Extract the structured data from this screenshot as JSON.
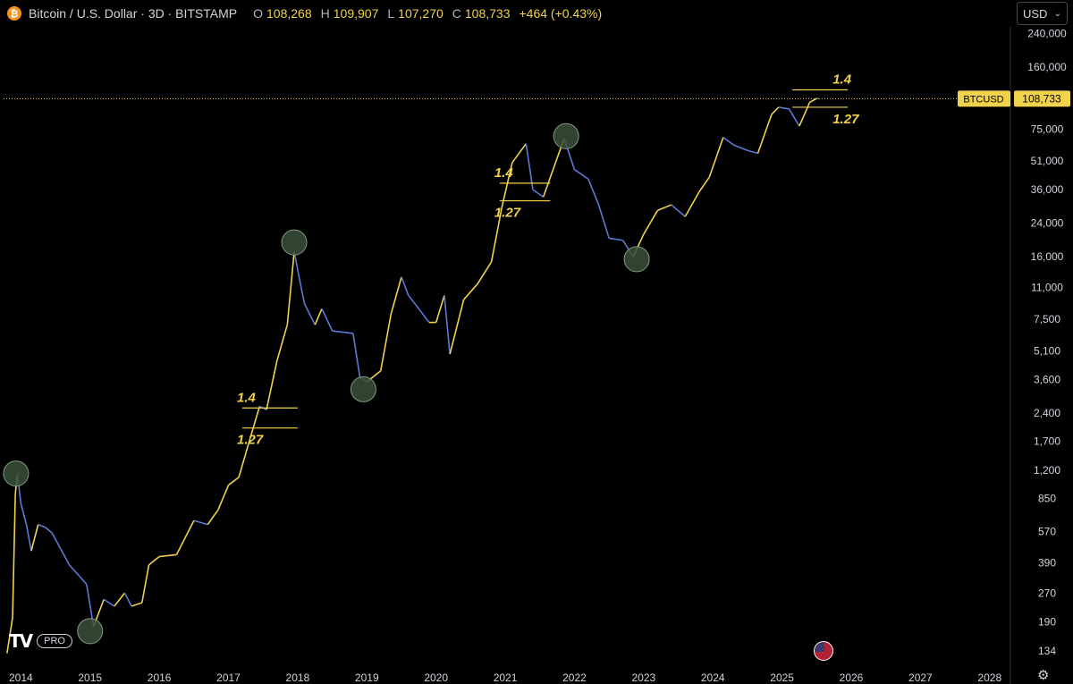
{
  "header": {
    "title": "Bitcoin / U.S. Dollar · 3D · BITSTAMP",
    "open_key": "O",
    "open": "108,268",
    "high_key": "H",
    "high": "109,907",
    "low_key": "L",
    "low": "107,270",
    "close_key": "C",
    "close": "108,733",
    "change": "+464 (+0.43%)"
  },
  "currency": {
    "value": "USD",
    "icon": "chevron-down-icon"
  },
  "branding": {
    "mark": "TV",
    "badge": "PRO"
  },
  "price_tag": {
    "symbol": "BTCUSD",
    "price": "108,733",
    "color": "#f0d24c"
  },
  "colors": {
    "background": "#000000",
    "up": "#f0d24c",
    "down": "#5b7bd6",
    "circle": "#39503a",
    "annotation": "#f0d24c",
    "axis_text": "#d1d4dc"
  },
  "chart_data": {
    "type": "line",
    "scale": "log",
    "y_axis_ticks": [
      "240,000",
      "160,000",
      "108,733",
      "75,000",
      "51,000",
      "36,000",
      "24,000",
      "16,000",
      "11,000",
      "7,500",
      "5,100",
      "3,600",
      "2,400",
      "1,700",
      "1,200",
      "850",
      "570",
      "390",
      "270",
      "190",
      "134"
    ],
    "x_axis_ticks": [
      "2014",
      "2015",
      "2016",
      "2017",
      "2018",
      "2019",
      "2020",
      "2021",
      "2022",
      "2023",
      "2024",
      "2025",
      "2026",
      "2027",
      "2028"
    ],
    "ylim": [
      120,
      260000
    ],
    "xlim": [
      2013.75,
      2028.3
    ],
    "series": [
      {
        "values": [
          [
            2013.8,
            130
          ],
          [
            2013.88,
            200
          ],
          [
            2013.92,
            900
          ],
          [
            2013.95,
            1150
          ],
          [
            2014.0,
            800
          ],
          [
            2014.08,
            620
          ],
          [
            2014.15,
            450
          ],
          [
            2014.25,
            620
          ],
          [
            2014.35,
            600
          ],
          [
            2014.45,
            560
          ],
          [
            2014.55,
            480
          ],
          [
            2014.7,
            380
          ],
          [
            2014.85,
            330
          ],
          [
            2014.95,
            300
          ],
          [
            2015.05,
            180
          ],
          [
            2015.2,
            250
          ],
          [
            2015.35,
            230
          ],
          [
            2015.5,
            270
          ],
          [
            2015.6,
            230
          ],
          [
            2015.75,
            240
          ],
          [
            2015.85,
            380
          ],
          [
            2016.0,
            420
          ],
          [
            2016.25,
            430
          ],
          [
            2016.5,
            650
          ],
          [
            2016.7,
            620
          ],
          [
            2016.85,
            740
          ],
          [
            2017.0,
            1000
          ],
          [
            2017.15,
            1100
          ],
          [
            2017.3,
            1700
          ],
          [
            2017.45,
            2600
          ],
          [
            2017.55,
            2500
          ],
          [
            2017.7,
            4500
          ],
          [
            2017.85,
            7000
          ],
          [
            2017.95,
            17000
          ],
          [
            2018.05,
            11000
          ],
          [
            2018.1,
            9000
          ],
          [
            2018.25,
            7000
          ],
          [
            2018.35,
            8500
          ],
          [
            2018.5,
            6500
          ],
          [
            2018.65,
            6400
          ],
          [
            2018.8,
            6300
          ],
          [
            2018.9,
            3700
          ],
          [
            2019.0,
            3500
          ],
          [
            2019.2,
            4000
          ],
          [
            2019.35,
            8000
          ],
          [
            2019.5,
            12500
          ],
          [
            2019.6,
            10000
          ],
          [
            2019.75,
            8500
          ],
          [
            2019.9,
            7200
          ],
          [
            2020.0,
            7200
          ],
          [
            2020.12,
            10000
          ],
          [
            2020.2,
            4900
          ],
          [
            2020.4,
            9500
          ],
          [
            2020.6,
            11500
          ],
          [
            2020.8,
            15000
          ],
          [
            2020.95,
            29000
          ],
          [
            2021.1,
            50000
          ],
          [
            2021.3,
            63000
          ],
          [
            2021.4,
            36000
          ],
          [
            2021.55,
            33000
          ],
          [
            2021.7,
            47000
          ],
          [
            2021.85,
            67000
          ],
          [
            2022.0,
            46000
          ],
          [
            2022.2,
            41000
          ],
          [
            2022.35,
            30000
          ],
          [
            2022.5,
            20000
          ],
          [
            2022.7,
            19500
          ],
          [
            2022.85,
            16000
          ],
          [
            2023.0,
            21000
          ],
          [
            2023.2,
            28000
          ],
          [
            2023.4,
            30000
          ],
          [
            2023.6,
            26000
          ],
          [
            2023.8,
            35000
          ],
          [
            2023.95,
            42000
          ],
          [
            2024.15,
            68000
          ],
          [
            2024.3,
            62000
          ],
          [
            2024.5,
            58000
          ],
          [
            2024.65,
            56000
          ],
          [
            2024.85,
            90000
          ],
          [
            2024.95,
            98000
          ],
          [
            2025.1,
            96000
          ],
          [
            2025.25,
            78000
          ],
          [
            2025.4,
            104000
          ],
          [
            2025.5,
            109000
          ],
          [
            2025.53,
            108733
          ]
        ]
      }
    ],
    "annotations": [
      {
        "type": "circle",
        "x": 2013.93,
        "y": 1150
      },
      {
        "type": "circle",
        "x": 2015.0,
        "y": 170
      },
      {
        "type": "circle",
        "x": 2017.95,
        "y": 19000
      },
      {
        "type": "circle",
        "x": 2018.95,
        "y": 3200
      },
      {
        "type": "circle",
        "x": 2021.88,
        "y": 69000
      },
      {
        "type": "circle",
        "x": 2022.9,
        "y": 15500
      },
      {
        "type": "level",
        "label": "1.4",
        "y": 2550,
        "x1": 2017.2,
        "x2": 2018.0
      },
      {
        "type": "level",
        "label": "1.27",
        "y": 2000,
        "x1": 2017.2,
        "x2": 2018.0
      },
      {
        "type": "level",
        "label": "1.4",
        "y": 39000,
        "x1": 2020.92,
        "x2": 2021.65
      },
      {
        "type": "level",
        "label": "1.27",
        "y": 31500,
        "x1": 2020.92,
        "x2": 2021.65
      },
      {
        "type": "level",
        "label": "1.4",
        "y": 121000,
        "x1": 2025.15,
        "x2": 2025.95
      },
      {
        "type": "level",
        "label": "1.27",
        "y": 98000,
        "x1": 2025.15,
        "x2": 2025.95
      }
    ]
  }
}
